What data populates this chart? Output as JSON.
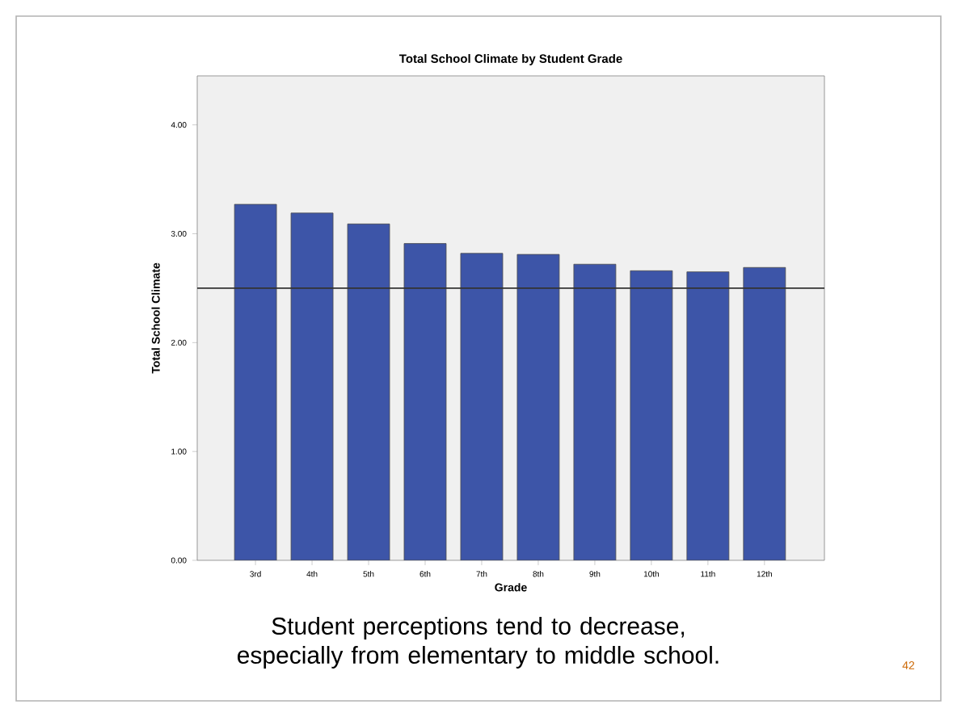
{
  "chart_data": {
    "type": "bar",
    "title": "Total School Climate by Student Grade",
    "xlabel": "Grade",
    "ylabel": "Total School Climate",
    "categories": [
      "3rd",
      "4th",
      "5th",
      "6th",
      "7th",
      "8th",
      "9th",
      "10th",
      "11th",
      "12th"
    ],
    "values": [
      3.27,
      3.19,
      3.09,
      2.91,
      2.82,
      2.81,
      2.72,
      2.66,
      2.65,
      2.69
    ],
    "color": "#3d55a8",
    "ylim": [
      0,
      4.45
    ],
    "yticks": [
      {
        "value": 0,
        "label": "0.00"
      },
      {
        "value": 1,
        "label": "1.00"
      },
      {
        "value": 2,
        "label": "2.00"
      },
      {
        "value": 3,
        "label": "3.00"
      },
      {
        "value": 4,
        "label": "4.00"
      }
    ],
    "ref_lines": [
      {
        "axis": "y",
        "value": 2.5,
        "color": "#333333"
      }
    ],
    "annotations": [
      "Student perceptions tend to decrease, especially from elementary to middle school.",
      "42"
    ]
  }
}
